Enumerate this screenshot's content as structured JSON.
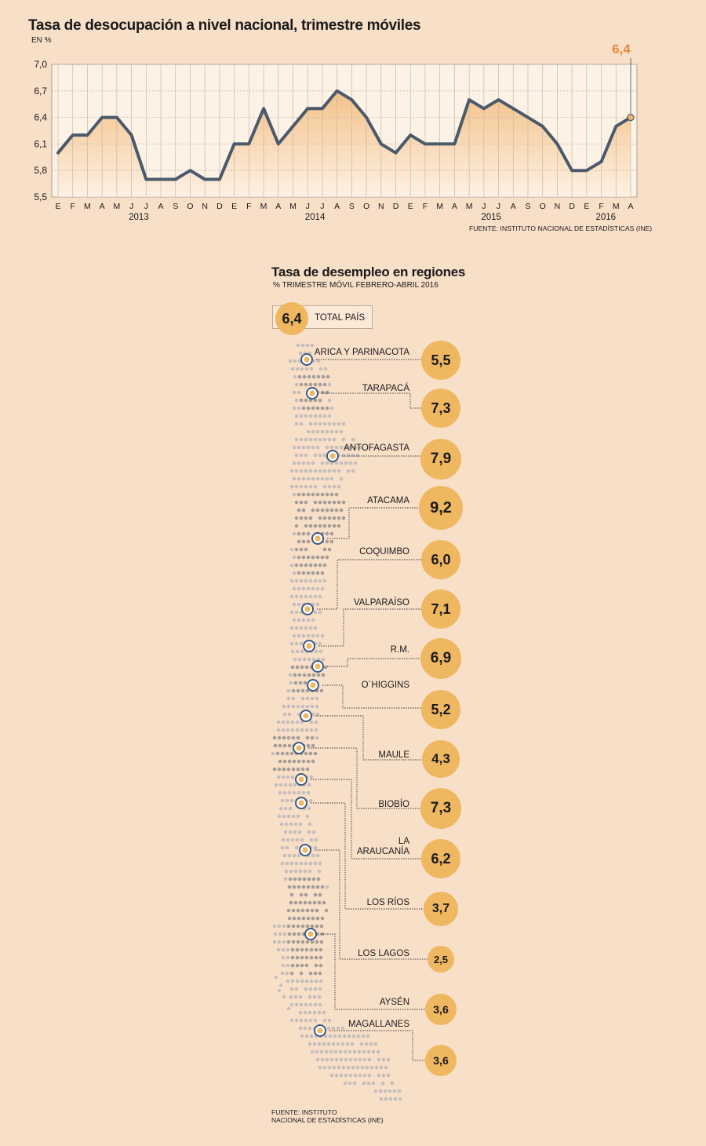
{
  "line_chart": {
    "title": "Tasa de desocupación a nivel nacional, trimestre móviles",
    "unit": "EN %",
    "source": "FUENTE: INSTITUTO NACIONAL DE ESTADÍSTICAS (INE)",
    "last_value_label": "6,4"
  },
  "regions_section": {
    "title": "Tasa de desempleo en regiones",
    "subtitle": "%  TRIMESTRE MÓVIL FEBRERO-ABRIL 2016",
    "total_value": "6,4",
    "total_label": "TOTAL PAÍS",
    "source_line1": "FUENTE: INSTITUTO",
    "source_line2": "NACIONAL DE ESTADÍSTICAS (INE)",
    "regions": [
      {
        "name": "ARICA Y PARINACOTA",
        "value": "5,5"
      },
      {
        "name": "TARAPACÁ",
        "value": "7,3"
      },
      {
        "name": "ANTOFAGASTA",
        "value": "7,9"
      },
      {
        "name": "ATACAMA",
        "value": "9,2"
      },
      {
        "name": "COQUIMBO",
        "value": "6,0"
      },
      {
        "name": "VALPARAÍSO",
        "value": "7,1"
      },
      {
        "name": "R.M.",
        "value": "6,9"
      },
      {
        "name": "O´HIGGINS",
        "value": "5,2"
      },
      {
        "name": "MAULE",
        "value": "4,3"
      },
      {
        "name": "BIOBÍO",
        "value": "7,3"
      },
      {
        "name": "LA ARAUCANÍA",
        "value": "6,2"
      },
      {
        "name": "LOS RÍOS",
        "value": "3,7"
      },
      {
        "name": "LOS LAGOS",
        "value": "2,5"
      },
      {
        "name": "AYSÉN",
        "value": "3,6"
      },
      {
        "name": "MAGALLANES",
        "value": "3,6"
      }
    ]
  },
  "chart_data": [
    {
      "type": "area",
      "title": "Tasa de desocupación a nivel nacional, trimestre móviles",
      "ylabel": "EN %",
      "ylim": [
        5.5,
        7.0
      ],
      "yticks": [
        "5,5",
        "5,8",
        "6,1",
        "6,4",
        "6,7",
        "7,0"
      ],
      "x": [
        "E",
        "F",
        "M",
        "A",
        "M",
        "J",
        "J",
        "A",
        "S",
        "O",
        "N",
        "D",
        "E",
        "F",
        "M",
        "A",
        "M",
        "J",
        "J",
        "A",
        "S",
        "O",
        "N",
        "D",
        "E",
        "F",
        "M",
        "A",
        "M",
        "J",
        "J",
        "A",
        "S",
        "O",
        "N",
        "D",
        "E",
        "F",
        "M",
        "A"
      ],
      "years": [
        "2013",
        "2014",
        "2015",
        "2016"
      ],
      "grid": true,
      "series": [
        {
          "values": [
            6.0,
            6.2,
            6.2,
            6.4,
            6.4,
            6.2,
            5.7,
            5.7,
            5.7,
            5.8,
            5.7,
            5.7,
            6.1,
            6.1,
            6.5,
            6.1,
            6.3,
            6.5,
            6.5,
            6.7,
            6.6,
            6.4,
            6.1,
            6.0,
            6.2,
            6.1,
            6.1,
            6.1,
            6.6,
            6.5,
            6.6,
            6.5,
            6.4,
            6.3,
            6.1,
            5.8,
            5.8,
            5.9,
            6.3,
            6.4
          ]
        }
      ],
      "colors": {
        "line": "#4a5a6a",
        "fill_top": "#f3bc7f",
        "fill_bottom": "#fdf1e4",
        "last_point": "#e7883b"
      }
    },
    {
      "type": "bar",
      "title": "Tasa de desempleo en regiones",
      "categories": [
        "ARICA Y PARINACOTA",
        "TARAPACÁ",
        "ANTOFAGASTA",
        "ATACAMA",
        "COQUIMBO",
        "VALPARAÍSO",
        "R.M.",
        "O´HIGGINS",
        "MAULE",
        "BIOBÍO",
        "LA ARAUCANÍA",
        "LOS RÍOS",
        "LOS LAGOS",
        "AYSÉN",
        "MAGALLANES"
      ],
      "values": [
        5.5,
        7.3,
        7.9,
        9.2,
        6.0,
        7.1,
        6.9,
        5.2,
        4.3,
        7.3,
        6.2,
        3.7,
        2.5,
        3.6,
        3.6
      ],
      "colors": {
        "bubble": "#efb75f",
        "marker_ring": "#3e5a80",
        "marker_fill": "#efb75f"
      }
    }
  ]
}
